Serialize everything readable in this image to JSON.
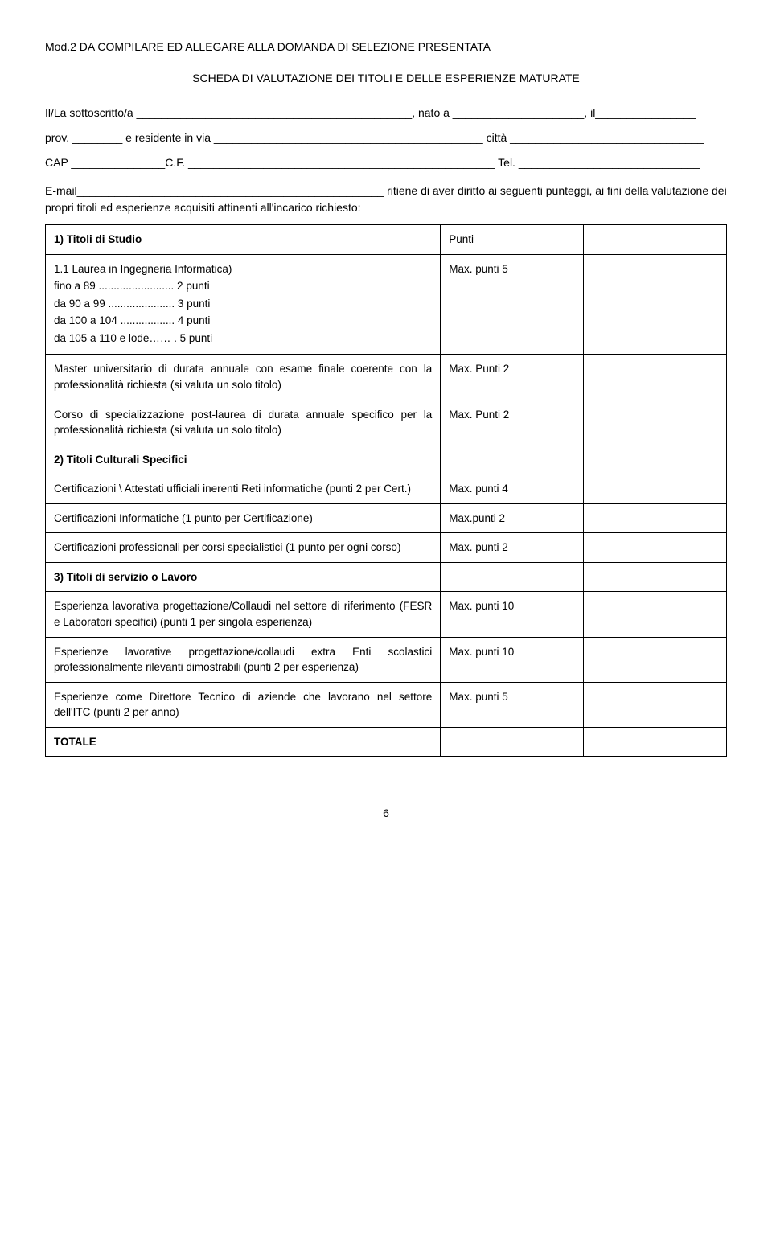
{
  "header": {
    "mod_line": "Mod.2 DA COMPILARE ED ALLEGARE ALLA DOMANDA DI SELEZIONE PRESENTATA",
    "scheda_line": "SCHEDA DI VALUTAZIONE DEI TITOLI E DELLE ESPERIENZE MATURATE"
  },
  "form": {
    "line1": "Il/La sottoscritto/a ____________________________________________, nato a _____________________, il________________",
    "line2": "prov. ________ e residente in via ___________________________________________ città _______________________________",
    "line3": "CAP _______________C.F. _________________________________________________ Tel. _____________________________",
    "line4": "E-mail_________________________________________________ ritiene di aver diritto ai seguenti punteggi, ai fini della valutazione dei propri titoli ed esperienze acquisiti attinenti all'incarico richiesto:"
  },
  "table": {
    "section1": {
      "title": "1) Titoli di Studio",
      "punti": "Punti",
      "row1": {
        "l1": "1.1 Laurea in Ingegneria Informatica)",
        "l2": "fino a 89 ......................... 2 punti",
        "l3": "da 90 a 99 ...................... 3 punti",
        "l4": "da 100 a 104 .................. 4 punti",
        "l5": "da 105 a 110 e lode…… . 5 punti",
        "pts": "Max. punti 5"
      },
      "row2": {
        "text": "Master universitario di durata annuale con esame finale coerente con la professionalità richiesta (si valuta un solo titolo)",
        "pts": "Max. Punti 2"
      },
      "row3": {
        "text": "Corso di specializzazione post-laurea di durata annuale specifico per la professionalità richiesta (si valuta un solo titolo)",
        "pts": "Max. Punti 2"
      }
    },
    "section2": {
      "title": "2) Titoli Culturali Specifici",
      "row1": {
        "text": "Certificazioni \\ Attestati ufficiali inerenti Reti informatiche (punti 2 per Cert.)",
        "pts": "Max. punti 4"
      },
      "row2": {
        "text": "Certificazioni Informatiche (1 punto per Certificazione)",
        "pts": "Max.punti 2"
      },
      "row3": {
        "text": "Certificazioni professionali per corsi specialistici (1 punto per ogni corso)",
        "pts": "Max. punti 2"
      }
    },
    "section3": {
      "title": "3) Titoli di servizio o Lavoro",
      "row1": {
        "text": "Esperienza lavorativa progettazione/Collaudi nel settore di riferimento (FESR e Laboratori specifici) (punti 1 per singola esperienza)",
        "pts": "Max. punti 10"
      },
      "row2": {
        "text": "Esperienze lavorative progettazione/collaudi extra Enti scolastici professionalmente rilevanti dimostrabili (punti 2 per esperienza)",
        "pts": "Max. punti 10"
      },
      "row3": {
        "text": "Esperienze come Direttore Tecnico di aziende che lavorano nel settore dell'ITC (punti 2 per anno)",
        "pts": "Max. punti 5"
      }
    },
    "totale": "TOTALE"
  },
  "page_number": "6"
}
